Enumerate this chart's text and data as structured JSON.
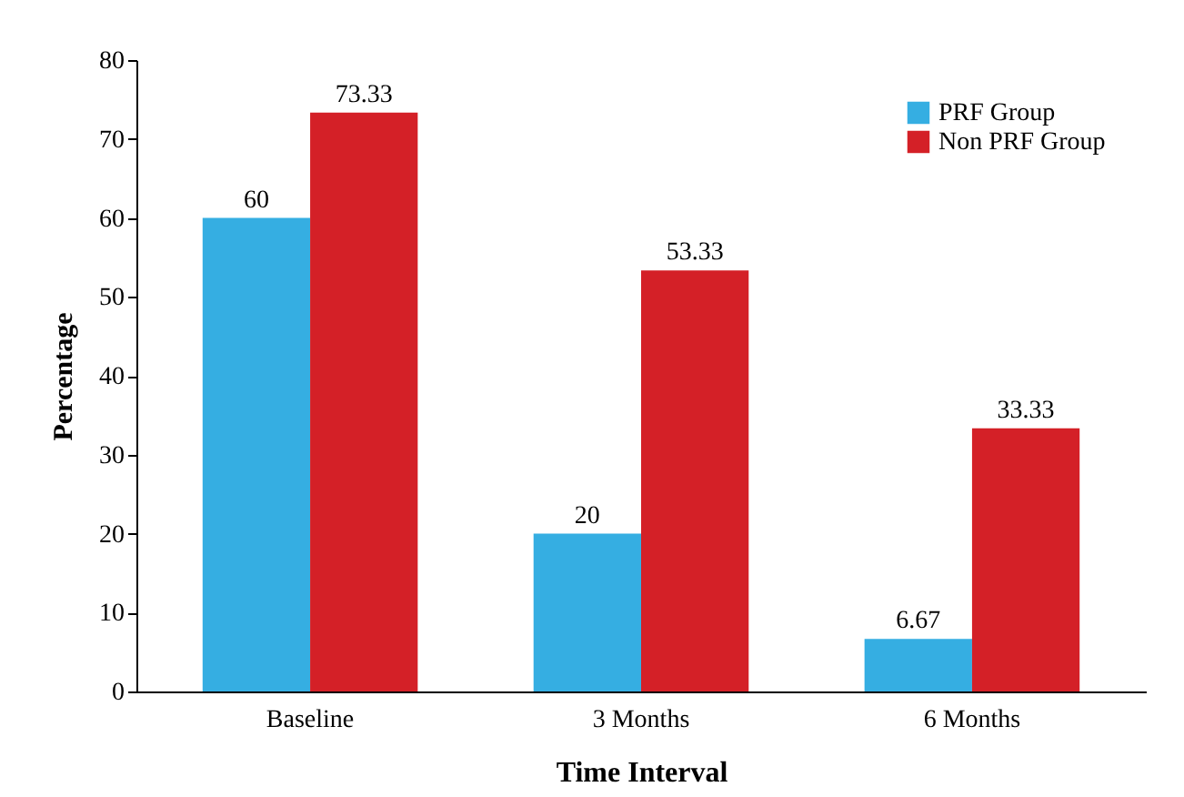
{
  "chart_data": {
    "type": "bar",
    "xlabel": "Time Interval",
    "ylabel": "Percentage",
    "categories": [
      "Baseline",
      "3 Months",
      "6 Months"
    ],
    "series": [
      {
        "name": "PRF Group",
        "color": "#35aee2",
        "values": [
          60,
          20,
          6.67
        ]
      },
      {
        "name": "Non PRF Group",
        "color": "#d42027",
        "values": [
          73.33,
          53.33,
          33.33
        ]
      }
    ],
    "ylim": [
      0,
      80
    ],
    "yticks": [
      0,
      10,
      20,
      30,
      40,
      50,
      60,
      70,
      80
    ],
    "grid": false,
    "legend": "top right",
    "data_labels": true
  }
}
